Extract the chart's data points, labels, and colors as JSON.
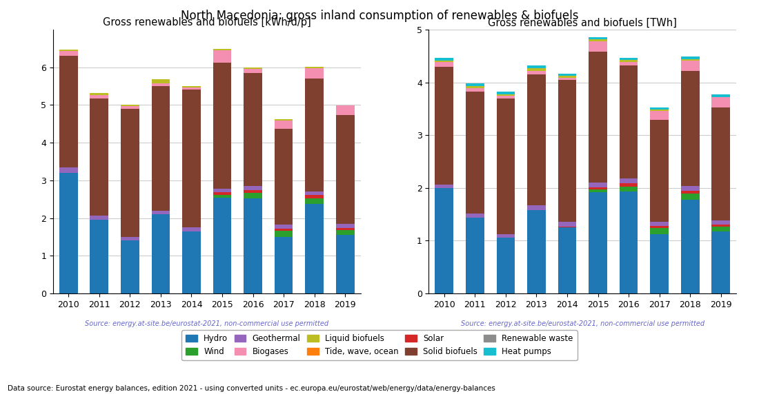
{
  "years": [
    2010,
    2011,
    2012,
    2013,
    2014,
    2015,
    2016,
    2017,
    2018,
    2019
  ],
  "title": "North Macedonia: gross inland consumption of renewables & biofuels",
  "left_title": "Gross renewables and biofuels [kWh/d/p]",
  "right_title": "Gross renewables and biofuels [TWh]",
  "source_text": "Source: energy.at-site.be/eurostat-2021, non-commercial use permitted",
  "footer_text": "Data source: Eurostat energy balances, edition 2021 - using converted units - ec.europa.eu/eurostat/web/energy/data/energy-balances",
  "colors": {
    "Hydro": "#1f77b4",
    "Tide, wave, ocean": "#ff7f0e",
    "Wind": "#2ca02c",
    "Solar": "#d62728",
    "Geothermal": "#9467bd",
    "Solid biofuels": "#7f4030",
    "Biogases": "#f48fb1",
    "Renewable waste": "#8c8c8c",
    "Liquid biofuels": "#bcbd22",
    "Heat pumps": "#17becf"
  },
  "legend_order": [
    "Hydro",
    "Wind",
    "Geothermal",
    "Biogases",
    "Liquid biofuels",
    "Tide, wave, ocean",
    "Solar",
    "Solid biofuels",
    "Renewable waste",
    "Heat pumps"
  ],
  "stack_order": [
    "Hydro",
    "Tide, wave, ocean",
    "Wind",
    "Solar",
    "Geothermal",
    "Solid biofuels",
    "Biogases",
    "Renewable waste",
    "Liquid biofuels",
    "Heat pumps"
  ],
  "left_data": {
    "Hydro": [
      3.2,
      1.95,
      1.4,
      2.1,
      1.65,
      2.55,
      2.53,
      1.5,
      2.38,
      1.55
    ],
    "Tide, wave, ocean": [
      0.0,
      0.0,
      0.0,
      0.0,
      0.0,
      0.0,
      0.0,
      0.0,
      0.0,
      0.0
    ],
    "Wind": [
      0.0,
      0.0,
      0.0,
      0.0,
      0.0,
      0.07,
      0.14,
      0.16,
      0.15,
      0.13
    ],
    "Solar": [
      0.0,
      0.0,
      0.0,
      0.0,
      0.0,
      0.06,
      0.08,
      0.06,
      0.08,
      0.06
    ],
    "Geothermal": [
      0.14,
      0.12,
      0.1,
      0.1,
      0.1,
      0.1,
      0.1,
      0.1,
      0.1,
      0.1
    ],
    "Solid biofuels": [
      2.96,
      3.1,
      3.4,
      3.3,
      3.65,
      3.35,
      3.0,
      2.55,
      3.0,
      2.9
    ],
    "Biogases": [
      0.14,
      0.1,
      0.07,
      0.08,
      0.06,
      0.32,
      0.1,
      0.22,
      0.27,
      0.25
    ],
    "Renewable waste": [
      0.0,
      0.0,
      0.0,
      0.0,
      0.0,
      0.0,
      0.0,
      0.0,
      0.0,
      0.0
    ],
    "Liquid biofuels": [
      0.02,
      0.05,
      0.04,
      0.1,
      0.04,
      0.04,
      0.04,
      0.04,
      0.04,
      0.0
    ],
    "Heat pumps": [
      0.0,
      0.0,
      0.0,
      0.0,
      0.0,
      0.0,
      0.0,
      0.0,
      0.0,
      0.0
    ]
  },
  "right_data": {
    "Hydro": [
      2.0,
      1.44,
      1.06,
      1.58,
      1.25,
      1.92,
      1.93,
      1.12,
      1.78,
      1.17
    ],
    "Tide, wave, ocean": [
      0.0,
      0.0,
      0.0,
      0.0,
      0.0,
      0.0,
      0.0,
      0.0,
      0.0,
      0.0
    ],
    "Wind": [
      0.0,
      0.0,
      0.0,
      0.0,
      0.0,
      0.05,
      0.1,
      0.12,
      0.11,
      0.1
    ],
    "Solar": [
      0.0,
      0.0,
      0.0,
      0.0,
      0.02,
      0.04,
      0.06,
      0.04,
      0.06,
      0.04
    ],
    "Geothermal": [
      0.06,
      0.08,
      0.07,
      0.09,
      0.09,
      0.09,
      0.09,
      0.08,
      0.09,
      0.08
    ],
    "Solid biofuels": [
      2.23,
      2.3,
      2.56,
      2.48,
      2.68,
      2.48,
      2.14,
      1.93,
      2.17,
      2.14
    ],
    "Biogases": [
      0.1,
      0.07,
      0.05,
      0.06,
      0.05,
      0.2,
      0.07,
      0.17,
      0.2,
      0.19
    ],
    "Renewable waste": [
      0.0,
      0.0,
      0.0,
      0.0,
      0.0,
      0.0,
      0.0,
      0.0,
      0.0,
      0.0
    ],
    "Liquid biofuels": [
      0.02,
      0.04,
      0.03,
      0.06,
      0.03,
      0.03,
      0.03,
      0.02,
      0.03,
      0.0
    ],
    "Heat pumps": [
      0.05,
      0.05,
      0.05,
      0.05,
      0.05,
      0.05,
      0.05,
      0.05,
      0.05,
      0.05
    ]
  },
  "left_ylim": [
    0,
    7
  ],
  "right_ylim": [
    0,
    5
  ],
  "left_yticks": [
    0,
    1,
    2,
    3,
    4,
    5,
    6
  ],
  "right_yticks": [
    0,
    1,
    2,
    3,
    4,
    5
  ],
  "source_color": "#6666cc"
}
